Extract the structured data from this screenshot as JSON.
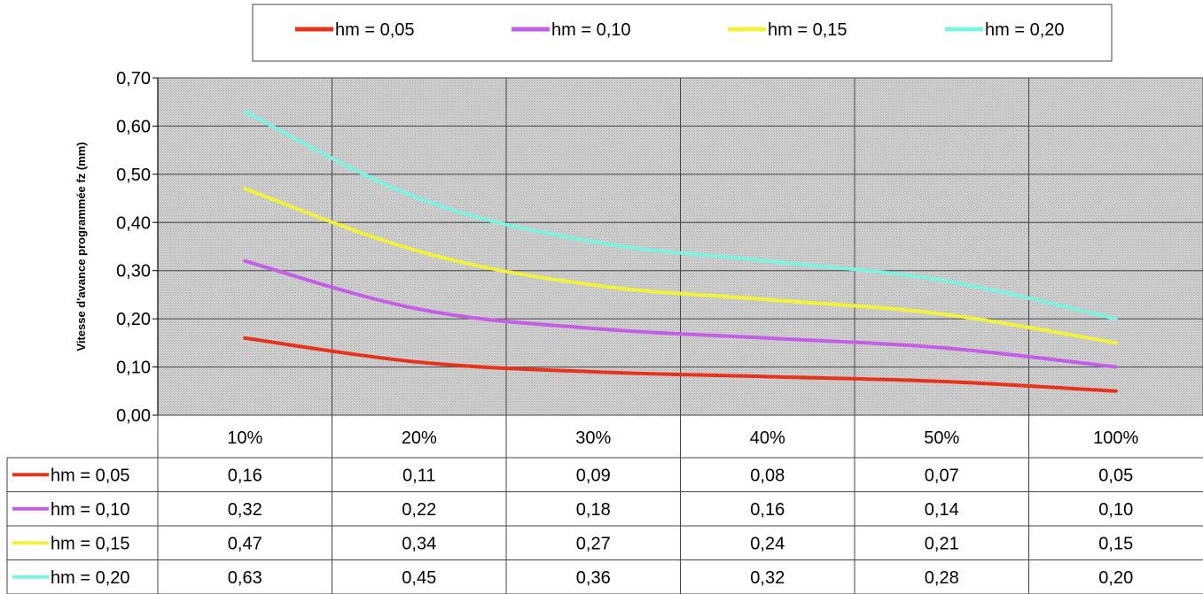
{
  "chart_data": {
    "type": "line",
    "title": "",
    "ylabel": "Vitesse d'avance programmée fz (mm)",
    "xlabel": "",
    "categories": [
      "10%",
      "20%",
      "30%",
      "40%",
      "50%",
      "100%"
    ],
    "ylim": [
      0,
      0.7
    ],
    "yticks": [
      "0,00",
      "0,10",
      "0,20",
      "0,30",
      "0,40",
      "0,50",
      "0,60",
      "0,70"
    ],
    "grid": true,
    "legend_position": "top",
    "series": [
      {
        "name": "hm = 0,05",
        "color": "#e8331c",
        "values": [
          0.16,
          0.11,
          0.09,
          0.08,
          0.07,
          0.05
        ],
        "labels": [
          "0,16",
          "0,11",
          "0,09",
          "0,08",
          "0,07",
          "0,05"
        ]
      },
      {
        "name": "hm = 0,10",
        "color": "#c45ee6",
        "values": [
          0.32,
          0.22,
          0.18,
          0.16,
          0.14,
          0.1
        ],
        "labels": [
          "0,32",
          "0,22",
          "0,18",
          "0,16",
          "0,14",
          "0,10"
        ]
      },
      {
        "name": "hm = 0,15",
        "color": "#f2f23a",
        "values": [
          0.47,
          0.34,
          0.27,
          0.24,
          0.21,
          0.15
        ],
        "labels": [
          "0,47",
          "0,34",
          "0,27",
          "0,24",
          "0,21",
          "0,15"
        ]
      },
      {
        "name": "hm = 0,20",
        "color": "#7ef2e0",
        "values": [
          0.63,
          0.45,
          0.36,
          0.32,
          0.28,
          0.2
        ],
        "labels": [
          "0,63",
          "0,45",
          "0,36",
          "0,32",
          "0,28",
          "0,20"
        ]
      }
    ]
  }
}
